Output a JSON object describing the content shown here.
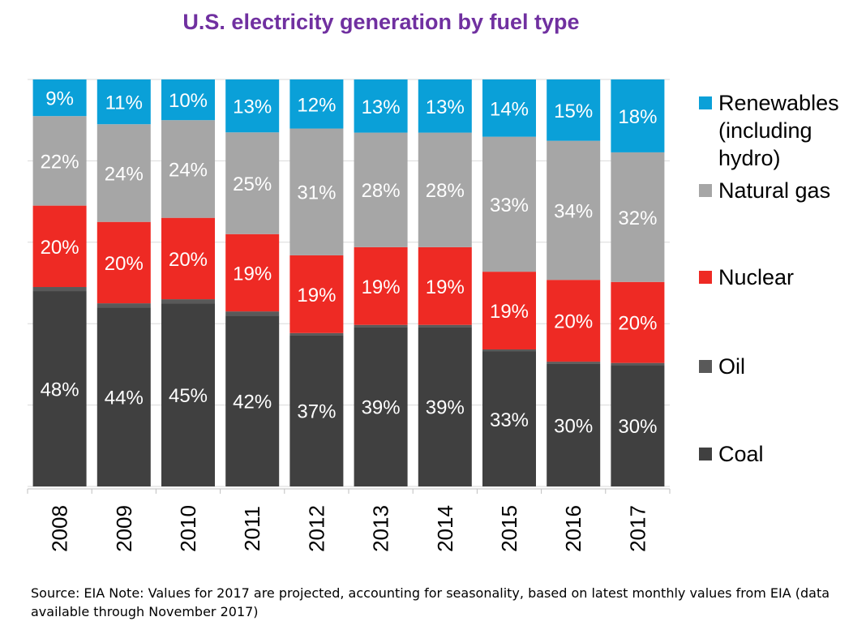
{
  "title": "U.S. electricity generation by fuel type",
  "source": "Source: EIA Note: Values for 2017 are projected, accounting for seasonality, based on latest monthly values from EIA (data available through November 2017)",
  "legend": [
    {
      "key": "renewables",
      "label": "Renewables (including hydro)",
      "color": "#0aa0d8"
    },
    {
      "key": "gas",
      "label": "Natural gas",
      "color": "#a6a6a6"
    },
    {
      "key": "nuclear",
      "label": "Nuclear",
      "color": "#ee2a24"
    },
    {
      "key": "oil",
      "label": "Oil",
      "color": "#595959"
    },
    {
      "key": "coal",
      "label": "Coal",
      "color": "#404040"
    }
  ],
  "chart_data": {
    "type": "bar",
    "stacked": true,
    "orientation": "vertical",
    "unit": "%",
    "ylim": [
      0,
      100
    ],
    "grid": true,
    "legend_position": "right",
    "categories": [
      "2008",
      "2009",
      "2010",
      "2011",
      "2012",
      "2013",
      "2014",
      "2015",
      "2016",
      "2017"
    ],
    "series": [
      {
        "name": "Coal",
        "key": "coal",
        "color": "#404040",
        "values": [
          48,
          44,
          45,
          42,
          37,
          39,
          39,
          33,
          30,
          30
        ],
        "labels": [
          "48%",
          "44%",
          "45%",
          "42%",
          "37%",
          "39%",
          "39%",
          "33%",
          "30%",
          "30%"
        ]
      },
      {
        "name": "Oil",
        "key": "oil",
        "color": "#595959",
        "values": [
          1,
          1,
          1,
          1,
          0.5,
          0.5,
          0.5,
          0.5,
          0.5,
          0.5
        ],
        "labels": []
      },
      {
        "name": "Nuclear",
        "key": "nuclear",
        "color": "#ee2a24",
        "values": [
          20,
          20,
          20,
          19,
          19,
          19,
          19,
          19,
          20,
          20
        ],
        "labels": [
          "20%",
          "20%",
          "20%",
          "19%",
          "19%",
          "19%",
          "19%",
          "19%",
          "20%",
          "20%"
        ]
      },
      {
        "name": "Natural gas",
        "key": "gas",
        "color": "#a6a6a6",
        "values": [
          22,
          24,
          24,
          25,
          31,
          28,
          28,
          33,
          34,
          32
        ],
        "labels": [
          "22%",
          "24%",
          "24%",
          "25%",
          "31%",
          "28%",
          "28%",
          "33%",
          "34%",
          "32%"
        ]
      },
      {
        "name": "Renewables (including hydro)",
        "key": "renewables",
        "color": "#0aa0d8",
        "values": [
          9,
          11,
          10,
          13,
          12,
          13,
          13,
          14,
          15,
          18
        ],
        "labels": [
          "9%",
          "11%",
          "10%",
          "13%",
          "12%",
          "13%",
          "13%",
          "14%",
          "15%",
          "18%"
        ]
      }
    ]
  }
}
